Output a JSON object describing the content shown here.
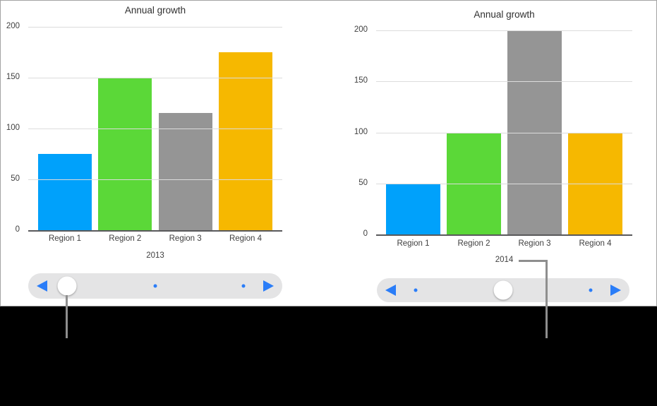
{
  "window": {
    "background": "#000000",
    "panel_background": "#ffffff",
    "panel_border": "#a3a3a3"
  },
  "colors": {
    "grid": "#dcdcdc",
    "axis": "#59595b",
    "text": "#404040",
    "scrubber_track": "#e4e4e5",
    "scrubber_accent": "#2a7df8",
    "scrubber_knob": "#ffffff",
    "callout_line": "#8e8e8e"
  },
  "chart_data": [
    {
      "type": "bar",
      "title": "Annual growth",
      "series_label": "2013",
      "categories": [
        "Region 1",
        "Region 2",
        "Region 3",
        "Region 4"
      ],
      "values": [
        75,
        150,
        115,
        175
      ],
      "bar_colors": [
        "#00a1fb",
        "#5bd838",
        "#959595",
        "#f6b800"
      ],
      "ylim": [
        0,
        200
      ],
      "yticks": [
        0,
        50,
        100,
        150,
        200
      ],
      "grid": true,
      "legend": false
    },
    {
      "type": "bar",
      "title": "Annual growth",
      "series_label": "2014",
      "categories": [
        "Region 1",
        "Region 2",
        "Region 3",
        "Region 4"
      ],
      "values": [
        50,
        100,
        200,
        100
      ],
      "bar_colors": [
        "#00a1fb",
        "#5bd838",
        "#959595",
        "#f6b800"
      ],
      "ylim": [
        0,
        200
      ],
      "yticks": [
        0,
        50,
        100,
        150,
        200
      ],
      "grid": true,
      "legend": false
    }
  ],
  "scrubber": {
    "positions_percent": [
      15.3,
      50,
      84.6
    ],
    "charts": [
      {
        "active_index": 0
      },
      {
        "active_index": 1
      }
    ]
  }
}
